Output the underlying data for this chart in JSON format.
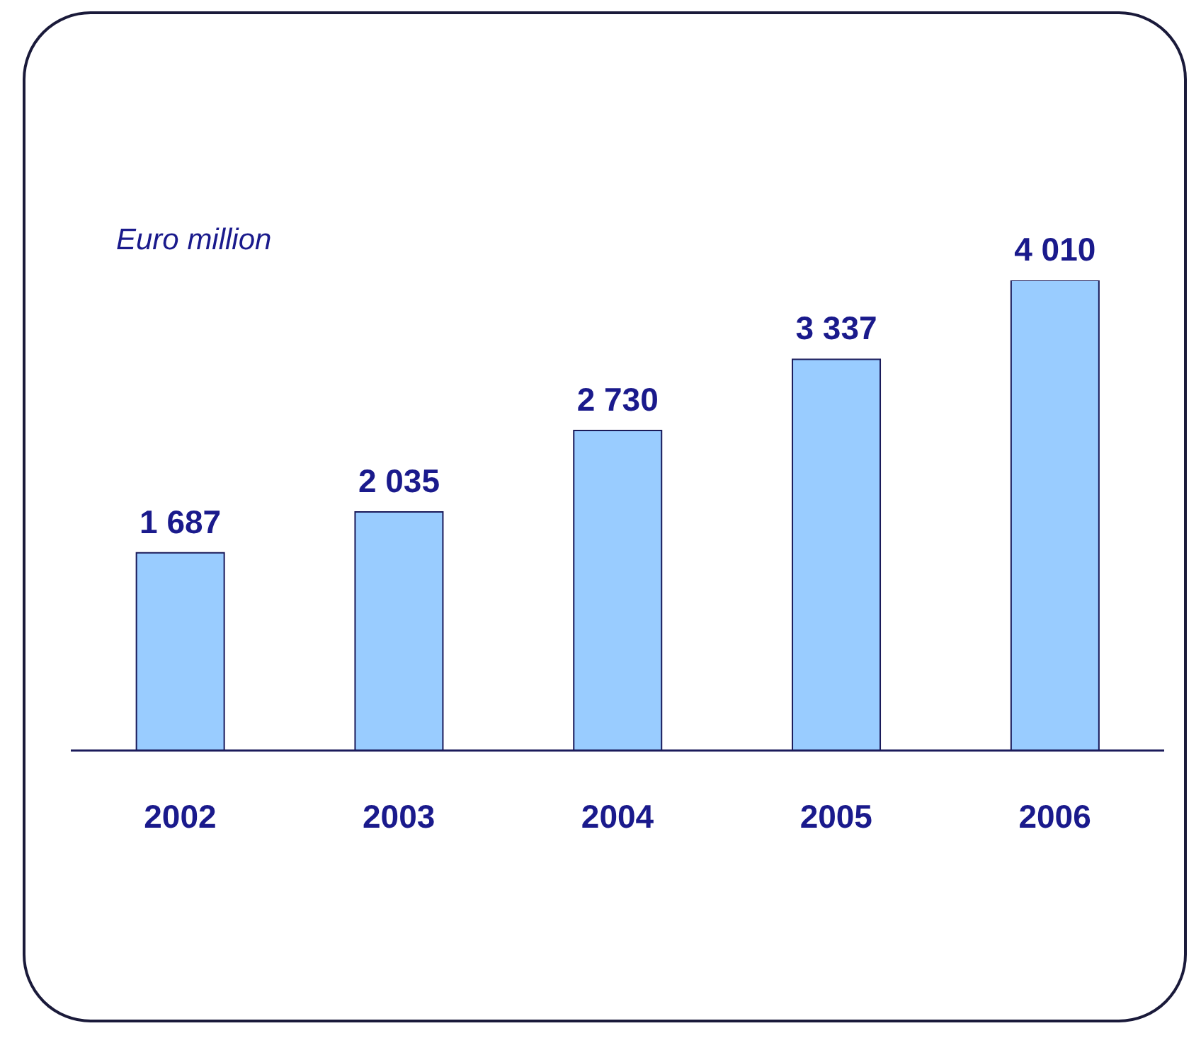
{
  "chart_data": {
    "type": "bar",
    "ylabel": "Euro million",
    "categories": [
      "2002",
      "2003",
      "2004",
      "2005",
      "2006"
    ],
    "values": [
      1687,
      2035,
      2730,
      3337,
      4010
    ],
    "color": "#99ccff",
    "value_labels": [
      "1 687",
      "2 035",
      "2 730",
      "3 337",
      "4 010"
    ]
  }
}
